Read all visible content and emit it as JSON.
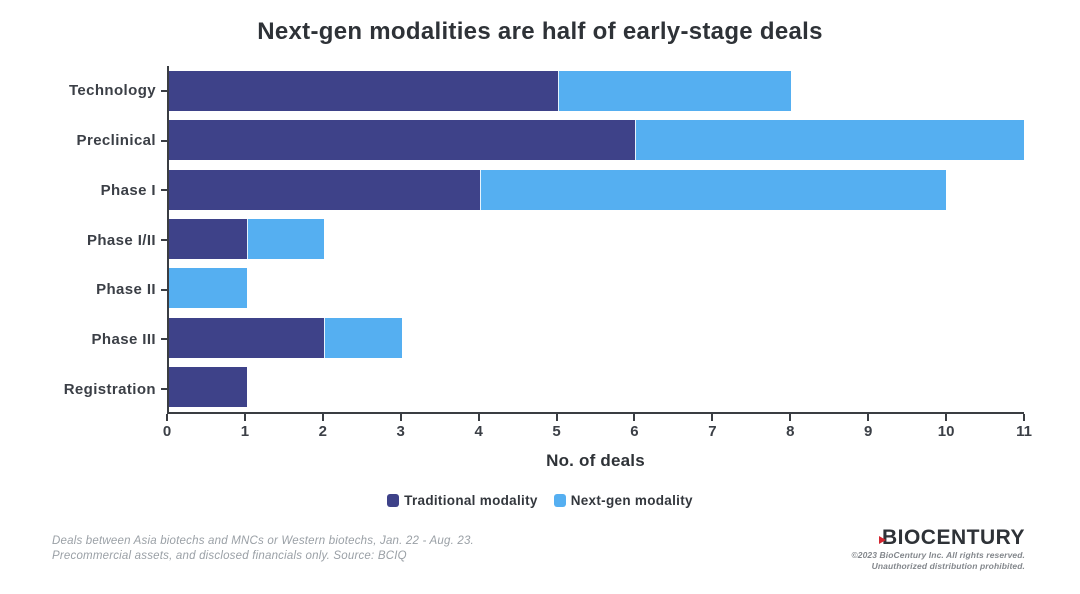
{
  "title": "Next-gen modalities are half of early-stage deals",
  "chart_data": {
    "type": "bar",
    "orientation": "horizontal",
    "stacked": true,
    "categories": [
      "Technology",
      "Preclinical",
      "Phase I",
      "Phase I/II",
      "Phase II",
      "Phase III",
      "Registration"
    ],
    "series": [
      {
        "name": "Traditional modality",
        "color": "#3e4289",
        "values": [
          5,
          6,
          4,
          1,
          0,
          2,
          1
        ]
      },
      {
        "name": "Next-gen modality",
        "color": "#55aff1",
        "values": [
          3,
          5,
          6,
          1,
          1,
          1,
          0
        ]
      }
    ],
    "totals": [
      8,
      11,
      10,
      2,
      1,
      3,
      1
    ],
    "xlabel": "No. of deals",
    "xlim": [
      0,
      11
    ],
    "xticks": [
      0,
      1,
      2,
      3,
      4,
      5,
      6,
      7,
      8,
      9,
      10,
      11
    ],
    "legend_position": "bottom",
    "grid": false
  },
  "footer": {
    "line1": "Deals between Asia biotechs and MNCs or Western biotechs, Jan. 22 - Aug. 23.",
    "line2": "Precommercial assets, and disclosed financials only. Source: BCIQ"
  },
  "branding": {
    "logo_text": "BIOCENTURY",
    "copyright_line1": "©2023 BioCentury Inc. All rights reserved.",
    "copyright_line2": "Unauthorized distribution prohibited."
  },
  "colors": {
    "traditional": "#3e4289",
    "nextgen": "#55aff1",
    "axis": "#3a3d42",
    "accent_red": "#d22630"
  }
}
